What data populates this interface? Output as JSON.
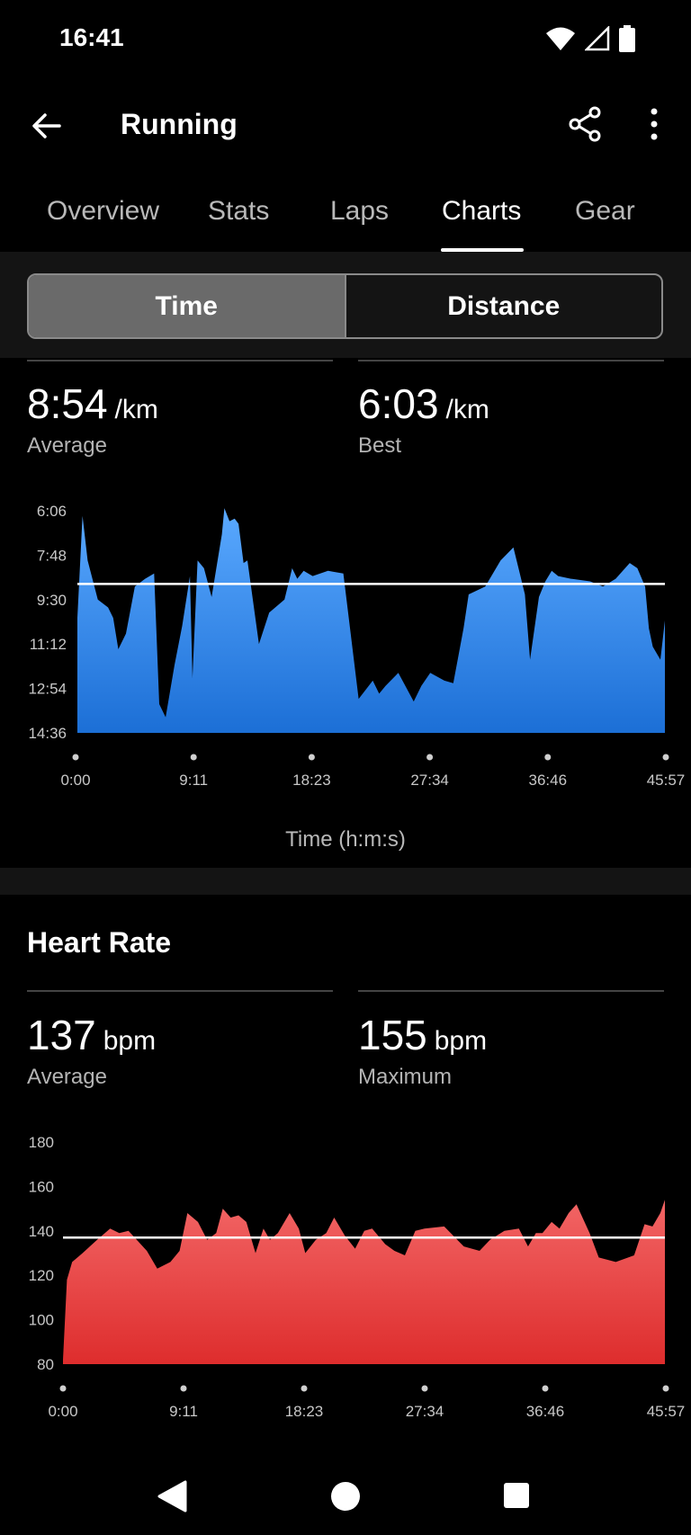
{
  "status_bar": {
    "time": "16:41",
    "icons": [
      "wifi-icon",
      "signal-icon",
      "battery-icon"
    ]
  },
  "app_bar": {
    "title": "Running",
    "icons": [
      "back-arrow-icon",
      "share-icon",
      "more-vert-icon"
    ]
  },
  "tabs": [
    {
      "label": "Overview",
      "active": false
    },
    {
      "label": "Stats",
      "active": false
    },
    {
      "label": "Laps",
      "active": false
    },
    {
      "label": "Charts",
      "active": true
    },
    {
      "label": "Gear",
      "active": false
    }
  ],
  "toggle": {
    "options": [
      "Time",
      "Distance"
    ],
    "selected": "Time"
  },
  "pace": {
    "average": {
      "value": "8:54",
      "unit": "/km",
      "label": "Average"
    },
    "best": {
      "value": "6:03",
      "unit": "/km",
      "label": "Best"
    }
  },
  "heart_rate": {
    "title": "Heart Rate",
    "average": {
      "value": "137",
      "unit": "bpm",
      "label": "Average"
    },
    "maximum": {
      "value": "155",
      "unit": "bpm",
      "label": "Maximum"
    }
  },
  "colors": {
    "pace_fill_top": "#5aa9ff",
    "pace_fill_bottom": "#1c6fd6",
    "hr_fill_top": "#f26565",
    "hr_fill_bottom": "#de2d2d",
    "background": "#000000"
  },
  "chart_data": [
    {
      "type": "area",
      "title": "",
      "xlabel": "Time (h:m:s)",
      "ylabel": "",
      "x_tick_labels": [
        "0:00",
        "9:11",
        "18:23",
        "27:34",
        "36:46",
        "45:57"
      ],
      "y_tick_labels": [
        "6:06",
        "7:48",
        "9:30",
        "11:12",
        "12:54",
        "14:36"
      ],
      "y_inverted": true,
      "ylim_min_per_km": [
        6.1,
        14.6
      ],
      "average_line_min_per_km": 8.9,
      "x_minutes": [
        0,
        0.4,
        0.8,
        1.6,
        2.4,
        2.8,
        3.2,
        3.8,
        4.5,
        5.3,
        6.0,
        6.4,
        6.9,
        7.6,
        8.2,
        8.8,
        9.0,
        9.4,
        9.9,
        10.5,
        11.3,
        11.5,
        11.9,
        12.3,
        12.6,
        13.0,
        13.3,
        14.2,
        15.0,
        16.2,
        16.8,
        17.2,
        17.7,
        18.4,
        19.6,
        20.8,
        22.0,
        23.1,
        23.6,
        24.1,
        25.1,
        26.3,
        26.9,
        27.6,
        28.7,
        29.4,
        30.2,
        30.6,
        31.9,
        33.1,
        34.1,
        34.5,
        35.0,
        35.4,
        36.1,
        36.6,
        37.1,
        37.6,
        38.6,
        40.1,
        41.1,
        42.1,
        43.2,
        43.8,
        44.4,
        44.7,
        45.0,
        45.6,
        45.95
      ],
      "pace_min_per_km": [
        10.2,
        6.3,
        8.0,
        9.5,
        9.8,
        10.2,
        11.4,
        10.8,
        9.0,
        8.7,
        8.5,
        13.5,
        14.0,
        12.0,
        10.5,
        8.6,
        12.5,
        8.0,
        8.3,
        9.4,
        7.0,
        6.0,
        6.5,
        6.4,
        6.6,
        8.1,
        8.0,
        11.2,
        10.0,
        9.5,
        8.3,
        8.7,
        8.4,
        8.6,
        8.4,
        8.5,
        13.3,
        12.6,
        13.1,
        12.8,
        12.3,
        13.4,
        12.8,
        12.3,
        12.6,
        12.7,
        10.6,
        9.3,
        9.0,
        8.0,
        7.5,
        8.3,
        9.3,
        11.8,
        9.4,
        8.8,
        8.4,
        8.6,
        8.7,
        8.8,
        9.0,
        8.7,
        8.1,
        8.3,
        9.0,
        10.6,
        11.3,
        11.8,
        10.3
      ]
    },
    {
      "type": "area",
      "title": "Heart Rate",
      "xlabel": "",
      "ylabel": "",
      "x_tick_labels": [
        "0:00",
        "9:11",
        "18:23",
        "27:34",
        "36:46",
        "45:57"
      ],
      "y_tick_labels": [
        "180",
        "160",
        "140",
        "120",
        "100",
        "80"
      ],
      "ylim": [
        80,
        180
      ],
      "average_line": 137,
      "x_minutes": [
        0,
        0.3,
        0.7,
        1.5,
        2.6,
        3.6,
        4.3,
        5.0,
        6.4,
        7.2,
        8.2,
        8.9,
        9.5,
        10.3,
        11.0,
        11.7,
        12.2,
        12.8,
        13.4,
        14.0,
        14.7,
        15.3,
        15.8,
        16.4,
        17.3,
        18.0,
        18.5,
        19.3,
        20.1,
        20.7,
        21.5,
        22.3,
        23.0,
        23.6,
        24.6,
        25.3,
        26.1,
        26.9,
        27.6,
        29.1,
        30.6,
        31.8,
        32.6,
        33.7,
        34.8,
        35.5,
        36.1,
        36.6,
        37.3,
        37.9,
        38.6,
        39.2,
        40.2,
        40.9,
        42.2,
        43.6,
        44.4,
        45.0,
        45.6,
        45.95
      ],
      "bpm": [
        82,
        118,
        126,
        130,
        136,
        141,
        139,
        140,
        131,
        123,
        126,
        131,
        148,
        144,
        136,
        139,
        150,
        146,
        147,
        144,
        130,
        141,
        136,
        139,
        148,
        141,
        130,
        136,
        139,
        146,
        138,
        132,
        140,
        141,
        134,
        131,
        129,
        140,
        141,
        142,
        133,
        131,
        136,
        140,
        141,
        133,
        139,
        139,
        144,
        141,
        148,
        152,
        139,
        128,
        126,
        129,
        143,
        142,
        148,
        154
      ]
    }
  ]
}
